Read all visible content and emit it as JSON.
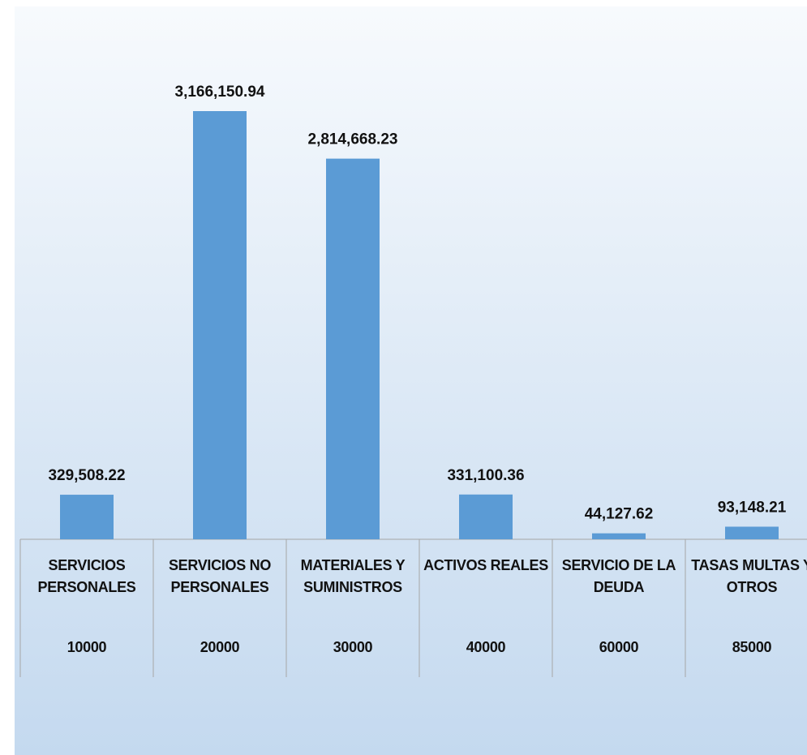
{
  "chart_data": {
    "type": "bar",
    "categories": [
      "SERVICIOS PERSONALES",
      "SERVICIOS NO PERSONALES",
      "MATERIALES Y SUMINISTROS",
      "ACTIVOS REALES",
      "SERVICIO DE LA DEUDA",
      "TASAS MULTAS Y OTROS"
    ],
    "category_codes": [
      "10000",
      "20000",
      "30000",
      "40000",
      "60000",
      "85000"
    ],
    "values": [
      329508.22,
      3166150.94,
      2814668.23,
      331100.36,
      44127.62,
      93148.21
    ],
    "value_labels": [
      "329,508.22",
      "3,166,150.94",
      "2,814,668.23",
      "331,100.36",
      "44,127.62",
      "93,148.21"
    ],
    "color": "#5b9bd5"
  }
}
